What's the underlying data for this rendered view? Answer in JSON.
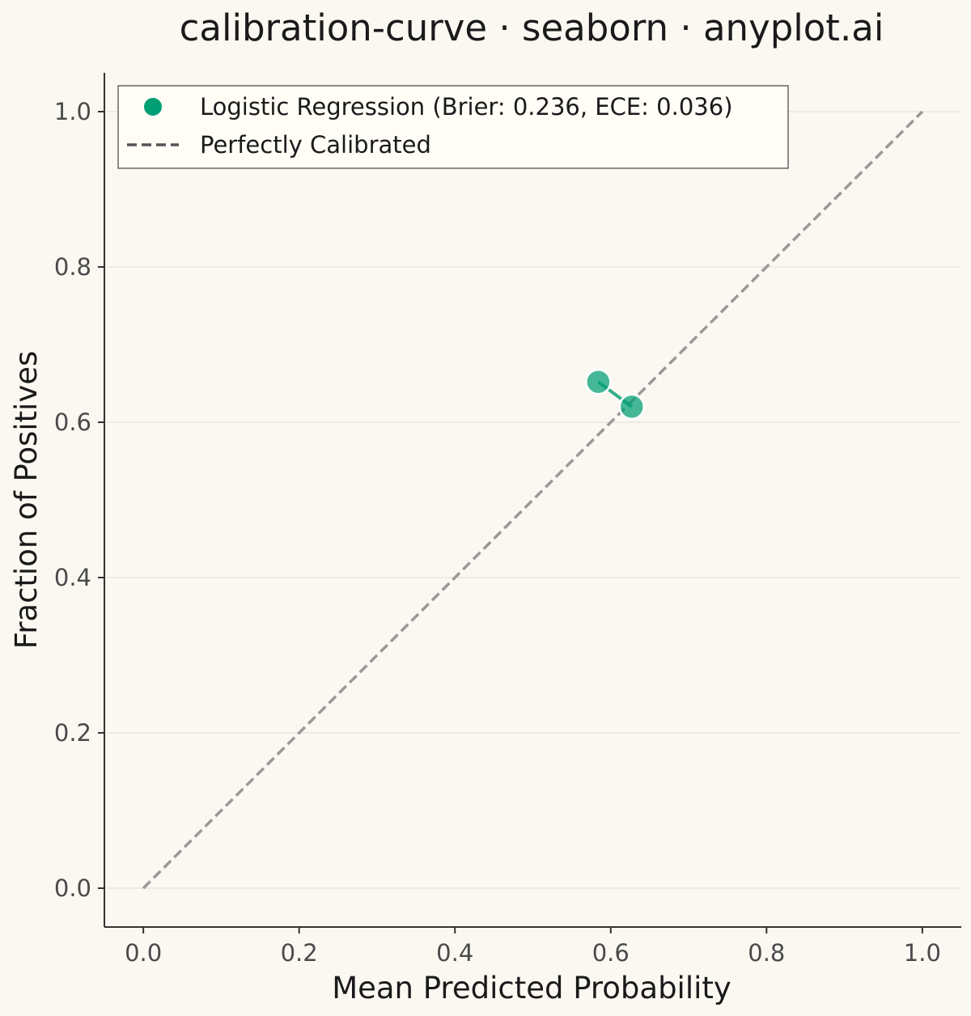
{
  "chart_data": {
    "type": "line",
    "title": "calibration-curve · seaborn · anyplot.ai",
    "xlabel": "Mean Predicted Probability",
    "ylabel": "Fraction of Positives",
    "xlim": [
      -0.05,
      1.05
    ],
    "ylim": [
      -0.05,
      1.05
    ],
    "xticks": [
      "0.0",
      "0.2",
      "0.4",
      "0.6",
      "0.8",
      "1.0"
    ],
    "yticks": [
      "0.0",
      "0.2",
      "0.4",
      "0.6",
      "0.8",
      "1.0"
    ],
    "grid": "horizontal",
    "legend_position": "top-left",
    "series": [
      {
        "name": "Logistic Regression (Brier: 0.236, ECE: 0.036)",
        "x": [
          0.584,
          0.627
        ],
        "y": [
          0.652,
          0.62
        ],
        "color": "#009E73",
        "marker": "circle"
      },
      {
        "name": "Perfectly Calibrated",
        "x": [
          0,
          1
        ],
        "y": [
          0,
          1
        ],
        "color": "#999999",
        "style": "dashed"
      }
    ]
  }
}
